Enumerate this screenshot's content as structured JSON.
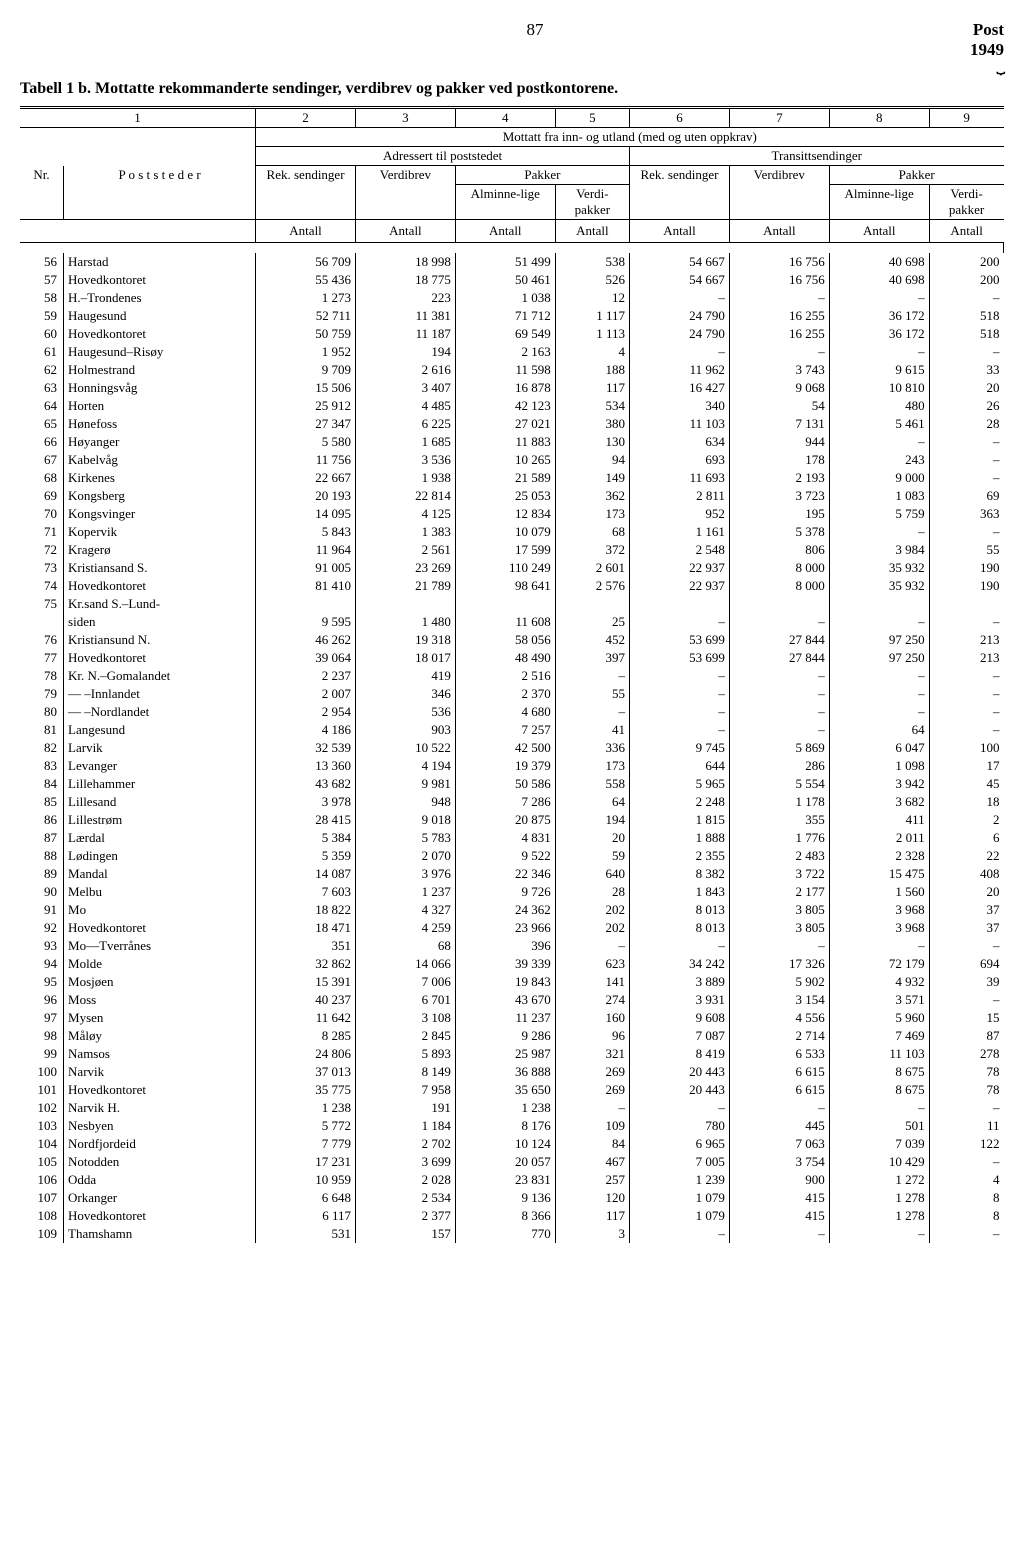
{
  "page_number": "87",
  "post_label": "Post",
  "year": "1949",
  "table_title": "Tabell 1 b.  Mottatte rekommanderte sendinger, verdibrev og pakker ved postkontorene.",
  "header": {
    "col_numbers": [
      "1",
      "2",
      "3",
      "4",
      "5",
      "6",
      "7",
      "8",
      "9"
    ],
    "mottatt": "Mottatt fra inn- og utland (med og uten oppkrav)",
    "adressert": "Adressert til poststedet",
    "transitt": "Transittsendinger",
    "nr": "Nr.",
    "poststeder": "P o s t s t e d e r",
    "rek_sendinger": "Rek. sendinger",
    "verdibrev": "Verdibrev",
    "pakker": "Pakker",
    "alminnelige": "Alminne-lige",
    "verdipakker": "Verdi-pakker",
    "antall": "Antall"
  },
  "rows": [
    {
      "nr": "56",
      "name": "Harstad",
      "c2": "56 709",
      "c3": "18 998",
      "c4": "51 499",
      "c5": "538",
      "c6": "54 667",
      "c7": "16 756",
      "c8": "40 698",
      "c9": "200"
    },
    {
      "nr": "57",
      "name": " Hovedkontoret",
      "c2": "55 436",
      "c3": "18 775",
      "c4": "50 461",
      "c5": "526",
      "c6": "54 667",
      "c7": "16 756",
      "c8": "40 698",
      "c9": "200"
    },
    {
      "nr": "58",
      "name": " H.–Trondenes",
      "c2": "1 273",
      "c3": "223",
      "c4": "1 038",
      "c5": "12",
      "c6": "–",
      "c7": "–",
      "c8": "–",
      "c9": "–"
    },
    {
      "nr": "59",
      "name": "Haugesund",
      "c2": "52 711",
      "c3": "11 381",
      "c4": "71 712",
      "c5": "1 117",
      "c6": "24 790",
      "c7": "16 255",
      "c8": "36 172",
      "c9": "518"
    },
    {
      "nr": "60",
      "name": " Hovedkontoret",
      "c2": "50 759",
      "c3": "11 187",
      "c4": "69 549",
      "c5": "1 113",
      "c6": "24 790",
      "c7": "16 255",
      "c8": "36 172",
      "c9": "518"
    },
    {
      "nr": "61",
      "name": " Haugesund–Risøy",
      "c2": "1 952",
      "c3": "194",
      "c4": "2 163",
      "c5": "4",
      "c6": "–",
      "c7": "–",
      "c8": "–",
      "c9": "–"
    },
    {
      "nr": "62",
      "name": "Holmestrand",
      "c2": "9 709",
      "c3": "2 616",
      "c4": "11 598",
      "c5": "188",
      "c6": "11 962",
      "c7": "3 743",
      "c8": "9 615",
      "c9": "33"
    },
    {
      "nr": "63",
      "name": "Honningsvåg",
      "c2": "15 506",
      "c3": "3 407",
      "c4": "16 878",
      "c5": "117",
      "c6": "16 427",
      "c7": "9 068",
      "c8": "10 810",
      "c9": "20"
    },
    {
      "nr": "64",
      "name": "Horten",
      "c2": "25 912",
      "c3": "4 485",
      "c4": "42 123",
      "c5": "534",
      "c6": "340",
      "c7": "54",
      "c8": "480",
      "c9": "26"
    },
    {
      "nr": "65",
      "name": "Hønefoss",
      "c2": "27 347",
      "c3": "6 225",
      "c4": "27 021",
      "c5": "380",
      "c6": "11 103",
      "c7": "7 131",
      "c8": "5 461",
      "c9": "28"
    },
    {
      "nr": "66",
      "name": "Høyanger",
      "c2": "5 580",
      "c3": "1 685",
      "c4": "11 883",
      "c5": "130",
      "c6": "634",
      "c7": "944",
      "c8": "–",
      "c9": "–"
    },
    {
      "nr": "67",
      "name": "Kabelvåg",
      "c2": "11 756",
      "c3": "3 536",
      "c4": "10 265",
      "c5": "94",
      "c6": "693",
      "c7": "178",
      "c8": "243",
      "c9": "–"
    },
    {
      "nr": "68",
      "name": "Kirkenes",
      "c2": "22 667",
      "c3": "1 938",
      "c4": "21 589",
      "c5": "149",
      "c6": "11 693",
      "c7": "2 193",
      "c8": "9 000",
      "c9": "–"
    },
    {
      "nr": "69",
      "name": "Kongsberg",
      "c2": "20 193",
      "c3": "22 814",
      "c4": "25 053",
      "c5": "362",
      "c6": "2 811",
      "c7": "3 723",
      "c8": "1 083",
      "c9": "69"
    },
    {
      "nr": "70",
      "name": "Kongsvinger",
      "c2": "14 095",
      "c3": "4 125",
      "c4": "12 834",
      "c5": "173",
      "c6": "952",
      "c7": "195",
      "c8": "5 759",
      "c9": "363"
    },
    {
      "nr": "71",
      "name": "Kopervik",
      "c2": "5 843",
      "c3": "1 383",
      "c4": "10 079",
      "c5": "68",
      "c6": "1 161",
      "c7": "5 378",
      "c8": "–",
      "c9": "–"
    },
    {
      "nr": "72",
      "name": "Kragerø",
      "c2": "11 964",
      "c3": "2 561",
      "c4": "17 599",
      "c5": "372",
      "c6": "2 548",
      "c7": "806",
      "c8": "3 984",
      "c9": "55"
    },
    {
      "nr": "73",
      "name": "Kristiansand S.",
      "c2": "91 005",
      "c3": "23 269",
      "c4": "110 249",
      "c5": "2 601",
      "c6": "22 937",
      "c7": "8 000",
      "c8": "35 932",
      "c9": "190"
    },
    {
      "nr": "74",
      "name": " Hovedkontoret",
      "c2": "81 410",
      "c3": "21 789",
      "c4": "98 641",
      "c5": "2 576",
      "c6": "22 937",
      "c7": "8 000",
      "c8": "35 932",
      "c9": "190"
    },
    {
      "nr": "75",
      "name": " Kr.sand S.–Lund-",
      "nobr": true
    },
    {
      "nr": "",
      "name": "  siden",
      "c2": "9 595",
      "c3": "1 480",
      "c4": "11 608",
      "c5": "25",
      "c6": "–",
      "c7": "–",
      "c8": "–",
      "c9": "–"
    },
    {
      "nr": "76",
      "name": "Kristiansund N.",
      "c2": "46 262",
      "c3": "19 318",
      "c4": "58 056",
      "c5": "452",
      "c6": "53 699",
      "c7": "27 844",
      "c8": "97 250",
      "c9": "213"
    },
    {
      "nr": "77",
      "name": " Hovedkontoret",
      "c2": "39 064",
      "c3": "18 017",
      "c4": "48 490",
      "c5": "397",
      "c6": "53 699",
      "c7": "27 844",
      "c8": "97 250",
      "c9": "213"
    },
    {
      "nr": "78",
      "name": " Kr. N.–Gomalandet",
      "c2": "2 237",
      "c3": "419",
      "c4": "2 516",
      "c5": "–",
      "c6": "–",
      "c7": "–",
      "c8": "–",
      "c9": "–"
    },
    {
      "nr": "79",
      "name": "  —   –Innlandet",
      "c2": "2 007",
      "c3": "346",
      "c4": "2 370",
      "c5": "55",
      "c6": "–",
      "c7": "–",
      "c8": "–",
      "c9": "–"
    },
    {
      "nr": "80",
      "name": "  —   –Nordlandet",
      "c2": "2 954",
      "c3": "536",
      "c4": "4 680",
      "c5": "–",
      "c6": "–",
      "c7": "–",
      "c8": "–",
      "c9": "–"
    },
    {
      "nr": "81",
      "name": "Langesund",
      "c2": "4 186",
      "c3": "903",
      "c4": "7 257",
      "c5": "41",
      "c6": "–",
      "c7": "–",
      "c8": "64",
      "c9": "–"
    },
    {
      "nr": "82",
      "name": "Larvik",
      "c2": "32 539",
      "c3": "10 522",
      "c4": "42 500",
      "c5": "336",
      "c6": "9 745",
      "c7": "5 869",
      "c8": "6 047",
      "c9": "100"
    },
    {
      "nr": "83",
      "name": "Levanger",
      "c2": "13 360",
      "c3": "4 194",
      "c4": "19 379",
      "c5": "173",
      "c6": "644",
      "c7": "286",
      "c8": "1 098",
      "c9": "17"
    },
    {
      "nr": "84",
      "name": "Lillehammer",
      "c2": "43 682",
      "c3": "9 981",
      "c4": "50 586",
      "c5": "558",
      "c6": "5 965",
      "c7": "5 554",
      "c8": "3 942",
      "c9": "45"
    },
    {
      "nr": "85",
      "name": "Lillesand",
      "c2": "3 978",
      "c3": "948",
      "c4": "7 286",
      "c5": "64",
      "c6": "2 248",
      "c7": "1 178",
      "c8": "3 682",
      "c9": "18"
    },
    {
      "nr": "86",
      "name": "Lillestrøm",
      "c2": "28 415",
      "c3": "9 018",
      "c4": "20 875",
      "c5": "194",
      "c6": "1 815",
      "c7": "355",
      "c8": "411",
      "c9": "2"
    },
    {
      "nr": "87",
      "name": "Lærdal",
      "c2": "5 384",
      "c3": "5 783",
      "c4": "4 831",
      "c5": "20",
      "c6": "1 888",
      "c7": "1 776",
      "c8": "2 011",
      "c9": "6"
    },
    {
      "nr": "88",
      "name": "Lødingen",
      "c2": "5 359",
      "c3": "2 070",
      "c4": "9 522",
      "c5": "59",
      "c6": "2 355",
      "c7": "2 483",
      "c8": "2 328",
      "c9": "22"
    },
    {
      "nr": "89",
      "name": "Mandal",
      "c2": "14 087",
      "c3": "3 976",
      "c4": "22 346",
      "c5": "640",
      "c6": "8 382",
      "c7": "3 722",
      "c8": "15 475",
      "c9": "408"
    },
    {
      "nr": "90",
      "name": "Melbu",
      "c2": "7 603",
      "c3": "1 237",
      "c4": "9 726",
      "c5": "28",
      "c6": "1 843",
      "c7": "2 177",
      "c8": "1 560",
      "c9": "20"
    },
    {
      "nr": "91",
      "name": "Mo",
      "c2": "18 822",
      "c3": "4 327",
      "c4": "24 362",
      "c5": "202",
      "c6": "8 013",
      "c7": "3 805",
      "c8": "3 968",
      "c9": "37"
    },
    {
      "nr": "92",
      "name": " Hovedkontoret",
      "c2": "18 471",
      "c3": "4 259",
      "c4": "23 966",
      "c5": "202",
      "c6": "8 013",
      "c7": "3 805",
      "c8": "3 968",
      "c9": "37"
    },
    {
      "nr": "93",
      "name": " Mo—Tverrånes",
      "c2": "351",
      "c3": "68",
      "c4": "396",
      "c5": "–",
      "c6": "–",
      "c7": "–",
      "c8": "–",
      "c9": "–"
    },
    {
      "nr": "94",
      "name": "Molde",
      "c2": "32 862",
      "c3": "14 066",
      "c4": "39 339",
      "c5": "623",
      "c6": "34 242",
      "c7": "17 326",
      "c8": "72 179",
      "c9": "694"
    },
    {
      "nr": "95",
      "name": "Mosjøen",
      "c2": "15 391",
      "c3": "7 006",
      "c4": "19 843",
      "c5": "141",
      "c6": "3 889",
      "c7": "5 902",
      "c8": "4 932",
      "c9": "39"
    },
    {
      "nr": "96",
      "name": "Moss",
      "c2": "40 237",
      "c3": "6 701",
      "c4": "43 670",
      "c5": "274",
      "c6": "3 931",
      "c7": "3 154",
      "c8": "3 571",
      "c9": "–"
    },
    {
      "nr": "97",
      "name": "Mysen",
      "c2": "11 642",
      "c3": "3 108",
      "c4": "11 237",
      "c5": "160",
      "c6": "9 608",
      "c7": "4 556",
      "c8": "5 960",
      "c9": "15"
    },
    {
      "nr": "98",
      "name": "Måløy",
      "c2": "8 285",
      "c3": "2 845",
      "c4": "9 286",
      "c5": "96",
      "c6": "7 087",
      "c7": "2 714",
      "c8": "7 469",
      "c9": "87"
    },
    {
      "nr": "99",
      "name": "Namsos",
      "c2": "24 806",
      "c3": "5 893",
      "c4": "25 987",
      "c5": "321",
      "c6": "8 419",
      "c7": "6 533",
      "c8": "11 103",
      "c9": "278"
    },
    {
      "nr": "100",
      "name": "Narvik",
      "c2": "37 013",
      "c3": "8 149",
      "c4": "36 888",
      "c5": "269",
      "c6": "20 443",
      "c7": "6 615",
      "c8": "8 675",
      "c9": "78"
    },
    {
      "nr": "101",
      "name": " Hovedkontoret",
      "c2": "35 775",
      "c3": "7 958",
      "c4": "35 650",
      "c5": "269",
      "c6": "20 443",
      "c7": "6 615",
      "c8": "8 675",
      "c9": "78"
    },
    {
      "nr": "102",
      "name": " Narvik H.",
      "c2": "1 238",
      "c3": "191",
      "c4": "1 238",
      "c5": "–",
      "c6": "–",
      "c7": "–",
      "c8": "–",
      "c9": "–"
    },
    {
      "nr": "103",
      "name": "Nesbyen",
      "c2": "5 772",
      "c3": "1 184",
      "c4": "8 176",
      "c5": "109",
      "c6": "780",
      "c7": "445",
      "c8": "501",
      "c9": "11"
    },
    {
      "nr": "104",
      "name": "Nordfjordeid",
      "c2": "7 779",
      "c3": "2 702",
      "c4": "10 124",
      "c5": "84",
      "c6": "6 965",
      "c7": "7 063",
      "c8": "7 039",
      "c9": "122"
    },
    {
      "nr": "105",
      "name": "Notodden",
      "c2": "17 231",
      "c3": "3 699",
      "c4": "20 057",
      "c5": "467",
      "c6": "7 005",
      "c7": "3 754",
      "c8": "10 429",
      "c9": "–"
    },
    {
      "nr": "106",
      "name": "Odda",
      "c2": "10 959",
      "c3": "2 028",
      "c4": "23 831",
      "c5": "257",
      "c6": "1 239",
      "c7": "900",
      "c8": "1 272",
      "c9": "4"
    },
    {
      "nr": "107",
      "name": "Orkanger",
      "c2": "6 648",
      "c3": "2 534",
      "c4": "9 136",
      "c5": "120",
      "c6": "1 079",
      "c7": "415",
      "c8": "1 278",
      "c9": "8"
    },
    {
      "nr": "108",
      "name": " Hovedkontoret",
      "c2": "6 117",
      "c3": "2 377",
      "c4": "8 366",
      "c5": "117",
      "c6": "1 079",
      "c7": "415",
      "c8": "1 278",
      "c9": "8"
    },
    {
      "nr": "109",
      "name": " Thamshamn",
      "c2": "531",
      "c3": "157",
      "c4": "770",
      "c5": "3",
      "c6": "–",
      "c7": "–",
      "c8": "–",
      "c9": "–"
    }
  ]
}
